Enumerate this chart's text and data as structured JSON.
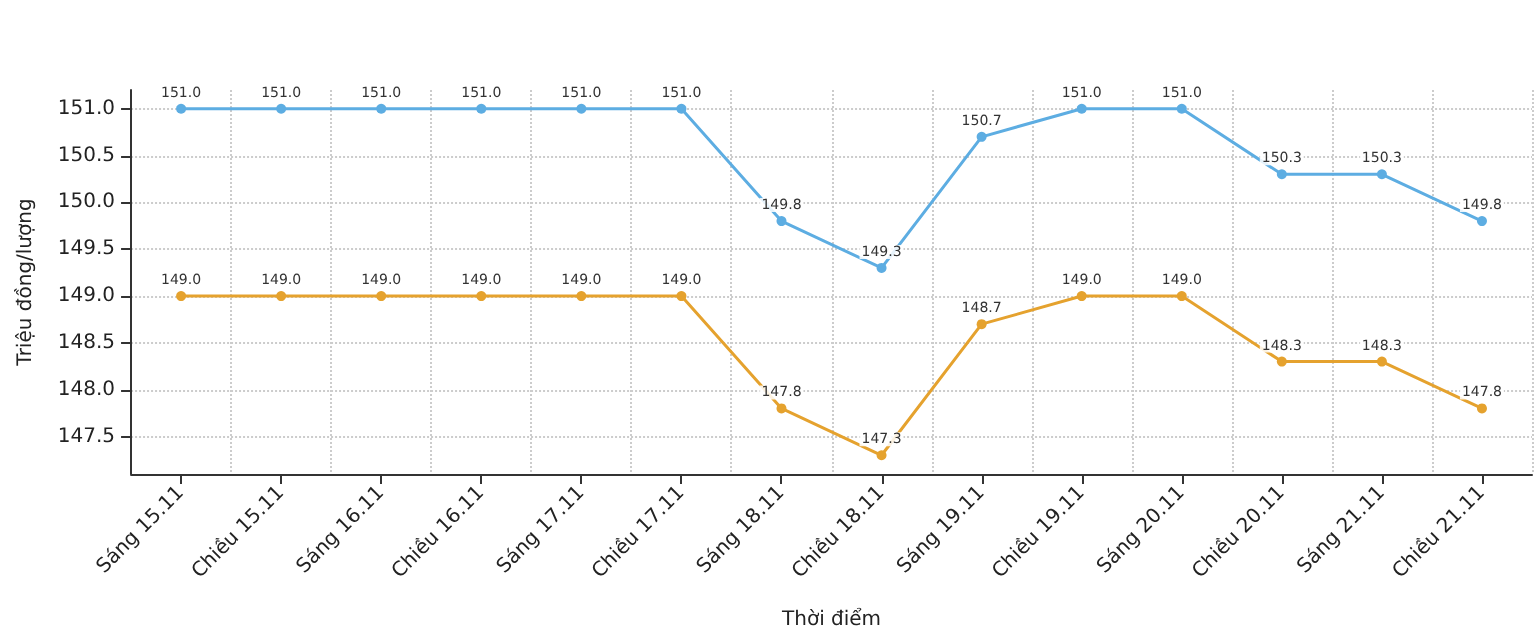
{
  "chart_data": {
    "type": "line",
    "xlabel": "Thời điểm",
    "ylabel": "Triệu đồng/lượng",
    "categories": [
      "Sáng 15.11",
      "Chiều 15.11",
      "Sáng 16.11",
      "Chiều 16.11",
      "Sáng 17.11",
      "Chiều 17.11",
      "Sáng 18.11",
      "Chiều 18.11",
      "Sáng 19.11",
      "Chiều 19.11",
      "Sáng 20.11",
      "Chiều 20.11",
      "Sáng 21.11",
      "Chiều 21.11"
    ],
    "series": [
      {
        "color": "#5dade2",
        "values": [
          151.0,
          151.0,
          151.0,
          151.0,
          151.0,
          151.0,
          149.8,
          149.3,
          150.7,
          151.0,
          151.0,
          150.3,
          150.3,
          149.8
        ],
        "value_labels": [
          "151.0",
          "151.0",
          "151.0",
          "151.0",
          "151.0",
          "151.0",
          "149.8",
          "149.3",
          "150.7",
          "151.0",
          "151.0",
          "150.3",
          "150.3",
          "149.8"
        ]
      },
      {
        "color": "#e5a22e",
        "values": [
          149.0,
          149.0,
          149.0,
          149.0,
          149.0,
          149.0,
          147.8,
          147.3,
          148.7,
          149.0,
          149.0,
          148.3,
          148.3,
          147.8
        ],
        "value_labels": [
          "149.0",
          "149.0",
          "149.0",
          "149.0",
          "149.0",
          "149.0",
          "147.8",
          "147.3",
          "148.7",
          "149.0",
          "149.0",
          "148.3",
          "148.3",
          "147.8"
        ]
      }
    ],
    "ylim": [
      147.1,
      151.2
    ],
    "yticks": [
      147.5,
      {
        "value": 148,
        "label": "148.0"
      },
      148.5,
      {
        "value": 149,
        "label": "149.0"
      },
      149.5,
      {
        "value": 150,
        "label": "150.0"
      },
      150.5,
      {
        "value": 151,
        "label": "151.0"
      }
    ],
    "grid": true,
    "marker": "circle",
    "line_style": "solid"
  }
}
